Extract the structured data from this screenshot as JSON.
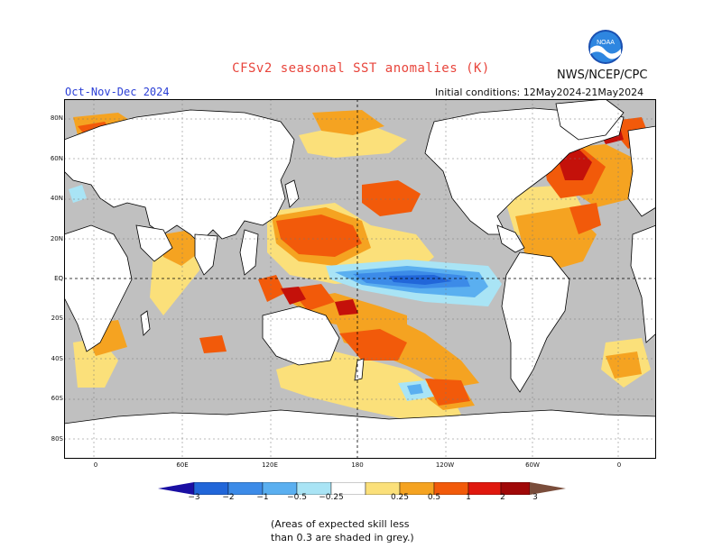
{
  "header": {
    "title": "CFSv2 seasonal SST anomalies (K)",
    "agency": "NWS/NCEP/CPC",
    "season": "Oct-Nov-Dec 2024",
    "initial_conditions": "Initial conditions: 12May2024-21May2024",
    "logo_text": "NOAA"
  },
  "map": {
    "projection": "cylindrical equidistant, Pacific-centered",
    "land_color": "#ffffff",
    "low_skill_color": "#c0c0c0",
    "lat_labels": [
      "80N",
      "60N",
      "40N",
      "20N",
      "EQ",
      "20S",
      "40S",
      "60S",
      "80S"
    ],
    "lon_labels": [
      "0",
      "60E",
      "120E",
      "180",
      "120W",
      "60W",
      "0"
    ]
  },
  "colorbar": {
    "labels": [
      "−3",
      "−2",
      "−1",
      "−0.5",
      "−0.25",
      "0.25",
      "0.5",
      "1",
      "2",
      "3"
    ],
    "colors": [
      "#1a0fa3",
      "#2166d9",
      "#3c8be8",
      "#5aaff0",
      "#a9e4f5",
      "#ffffff",
      "#fbe07a",
      "#f5a321",
      "#f25a0a",
      "#e0180e",
      "#a00808",
      "#7a4d3b"
    ],
    "units": "K"
  },
  "note": {
    "line1": "(Areas of expected skill less",
    "line2": "than 0.3 are shaded in grey.)"
  }
}
